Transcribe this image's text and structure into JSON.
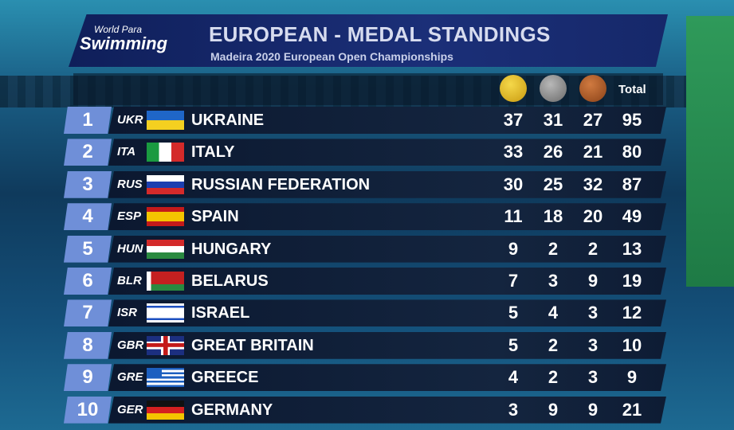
{
  "header": {
    "logo_line1": "World Para",
    "logo_line2": "Swimming",
    "title": "EUROPEAN - MEDAL STANDINGS",
    "subtitle": "Madeira 2020 European Open Championships"
  },
  "columns": {
    "gold_color": "#e0b820",
    "silver_color": "#8a8a8a",
    "bronze_color": "#a8582a",
    "total": "Total"
  },
  "rows": [
    {
      "rank": "1",
      "code": "UKR",
      "country": "UKRAINE",
      "gold": "37",
      "silver": "31",
      "bronze": "27",
      "total": "95"
    },
    {
      "rank": "2",
      "code": "ITA",
      "country": "ITALY",
      "gold": "33",
      "silver": "26",
      "bronze": "21",
      "total": "80"
    },
    {
      "rank": "3",
      "code": "RUS",
      "country": "RUSSIAN FEDERATION",
      "gold": "30",
      "silver": "25",
      "bronze": "32",
      "total": "87"
    },
    {
      "rank": "4",
      "code": "ESP",
      "country": "SPAIN",
      "gold": "11",
      "silver": "18",
      "bronze": "20",
      "total": "49"
    },
    {
      "rank": "5",
      "code": "HUN",
      "country": "HUNGARY",
      "gold": "9",
      "silver": "2",
      "bronze": "2",
      "total": "13"
    },
    {
      "rank": "6",
      "code": "BLR",
      "country": "BELARUS",
      "gold": "7",
      "silver": "3",
      "bronze": "9",
      "total": "19"
    },
    {
      "rank": "7",
      "code": "ISR",
      "country": "ISRAEL",
      "gold": "5",
      "silver": "4",
      "bronze": "3",
      "total": "12"
    },
    {
      "rank": "8",
      "code": "GBR",
      "country": "GREAT BRITAIN",
      "gold": "5",
      "silver": "2",
      "bronze": "3",
      "total": "10"
    },
    {
      "rank": "9",
      "code": "GRE",
      "country": "GREECE",
      "gold": "4",
      "silver": "2",
      "bronze": "3",
      "total": "9"
    },
    {
      "rank": "10",
      "code": "GER",
      "country": "GERMANY",
      "gold": "3",
      "silver": "9",
      "bronze": "9",
      "total": "21"
    }
  ]
}
